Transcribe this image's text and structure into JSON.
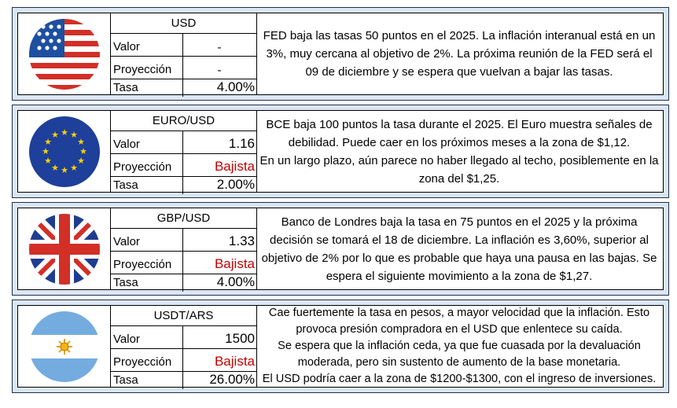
{
  "cards": [
    {
      "flag_icon": "usa-flag-icon",
      "pair": "USD",
      "rows": [
        {
          "label": "Valor",
          "value": "-"
        },
        {
          "label": "Proyección",
          "value": "-"
        },
        {
          "label": "Tasa",
          "value": "4.00%"
        }
      ],
      "description": [
        "FED baja las tasas 50 puntos en el 2025. La inflación interanual está en un 3%, muy cercana al objetivo de 2%. La próxima reunión de la FED será el 09 de diciembre y se espera que vuelvan a bajar las tasas."
      ]
    },
    {
      "flag_icon": "eu-flag-icon",
      "pair": "EURO/USD",
      "rows": [
        {
          "label": "Valor",
          "value": "1.16"
        },
        {
          "label": "Proyección",
          "value": "Bajista"
        },
        {
          "label": "Tasa",
          "value": "2.00%"
        }
      ],
      "description": [
        "BCE baja 100 puntos la tasa durante el 2025. El Euro muestra señales de debilidad. Puede caer en los próximos meses a la zona de $1,12.",
        "En un largo plazo, aún parece no haber llegado al techo, posiblemente en la zona del $1,25."
      ]
    },
    {
      "flag_icon": "uk-flag-icon",
      "pair": "GBP/USD",
      "rows": [
        {
          "label": "Valor",
          "value": "1.33"
        },
        {
          "label": "Proyección",
          "value": "Bajista"
        },
        {
          "label": "Tasa",
          "value": "4.00%"
        }
      ],
      "description": [
        "Banco de Londres baja la tasa en 75 puntos en el 2025 y la próxima decisión se tomará el 18 de diciembre. La inflación es 3,60%, superior al objetivo de 2% por lo que es probable que haya una pausa en las bajas. Se espera el siguiente movimiento a la zona de $1,27."
      ]
    },
    {
      "flag_icon": "argentina-flag-icon",
      "pair": "USDT/ARS",
      "rows": [
        {
          "label": "Valor",
          "value": "1500"
        },
        {
          "label": "Proyección",
          "value": "Bajista"
        },
        {
          "label": "Tasa",
          "value": "26.00%"
        }
      ],
      "description": [
        "Cae fuertemente la tasa en pesos, a mayor velocidad que la inflación. Esto provoca presión compradora en el USD que enlentece su caída.",
        "Se espera que la inflación ceda, ya que fue cuasada por la devaluación moderada, pero sin sustento de aumento de la base monetaria.",
        "El USD podría caer a la zona de $1200-$1300, con el ingreso de inversiones."
      ]
    }
  ],
  "colors": {
    "panel_bg": "#dae6f4",
    "bearish_red": "#c00000"
  }
}
